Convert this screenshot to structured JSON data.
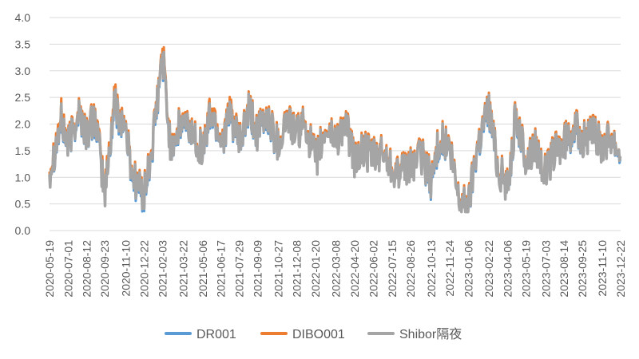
{
  "chart_data": {
    "type": "line",
    "title": "",
    "xlabel": "",
    "ylabel": "",
    "ylim": [
      0,
      4
    ],
    "yticks": [
      "0.0",
      "0.5",
      "1.0",
      "1.5",
      "2.0",
      "2.5",
      "3.0",
      "3.5",
      "4.0"
    ],
    "grid": "horizontal",
    "legend_position": "bottom",
    "x_start": "2020-05-19",
    "x_end": "2023-12-22",
    "xtick_labels": [
      "2020-05-19",
      "2020-07-01",
      "2020-08-12",
      "2020-09-23",
      "2020-11-10",
      "2020-12-22",
      "2021-02-03",
      "2021-03-22",
      "2021-05-06",
      "2021-06-17",
      "2021-07-29",
      "2021-09-09",
      "2021-10-27",
      "2021-12-08",
      "2022-01-20",
      "2022-03-08",
      "2022-04-20",
      "2022-06-02",
      "2022-07-15",
      "2022-08-26",
      "2022-10-13",
      "2022-11-24",
      "2023-01-06",
      "2023-02-22",
      "2023-04-06",
      "2023-05-19",
      "2023-07-03",
      "2023-08-14",
      "2023-09-25",
      "2023-11-10",
      "2023-12-22"
    ],
    "series": [
      {
        "name": "DR001",
        "color": "#5b9bd5",
        "x": [
          "2020-05-19",
          "2020-06-15",
          "2020-07-01",
          "2020-07-25",
          "2020-08-12",
          "2020-09-01",
          "2020-09-23",
          "2020-10-15",
          "2020-11-10",
          "2020-11-25",
          "2020-12-22",
          "2021-01-10",
          "2021-01-25",
          "2021-02-03",
          "2021-02-20",
          "2021-03-22",
          "2021-04-15",
          "2021-05-06",
          "2021-05-25",
          "2021-06-17",
          "2021-07-10",
          "2021-07-29",
          "2021-08-20",
          "2021-09-09",
          "2021-10-01",
          "2021-10-27",
          "2021-11-15",
          "2021-12-08",
          "2021-12-28",
          "2022-01-20",
          "2022-02-15",
          "2022-03-08",
          "2022-03-30",
          "2022-04-20",
          "2022-05-10",
          "2022-06-02",
          "2022-06-25",
          "2022-07-15",
          "2022-08-05",
          "2022-08-26",
          "2022-09-20",
          "2022-10-13",
          "2022-11-01",
          "2022-11-24",
          "2022-12-15",
          "2023-01-06",
          "2023-01-25",
          "2023-02-22",
          "2023-03-15",
          "2023-04-06",
          "2023-04-25",
          "2023-05-19",
          "2023-06-10",
          "2023-07-03",
          "2023-07-25",
          "2023-08-14",
          "2023-09-05",
          "2023-09-25",
          "2023-10-20",
          "2023-11-10",
          "2023-12-01",
          "2023-12-22"
        ],
        "values": [
          1.1,
          2.0,
          1.6,
          2.2,
          1.8,
          2.1,
          0.7,
          2.3,
          1.9,
          1.0,
          0.6,
          1.5,
          2.6,
          3.25,
          1.6,
          2.0,
          1.8,
          1.5,
          2.2,
          1.7,
          2.1,
          1.6,
          2.2,
          1.8,
          2.1,
          1.6,
          2.1,
          1.8,
          2.0,
          1.3,
          1.9,
          1.7,
          2.0,
          1.3,
          1.5,
          1.35,
          1.45,
          1.2,
          1.05,
          1.2,
          1.4,
          0.9,
          1.7,
          1.5,
          0.6,
          0.45,
          1.5,
          2.3,
          1.2,
          0.8,
          2.1,
          1.3,
          1.6,
          1.05,
          1.5,
          1.6,
          1.9,
          1.7,
          1.8,
          1.6,
          1.8,
          1.4
        ]
      },
      {
        "name": "DIBO001",
        "color": "#ed7d31",
        "x": [
          "2020-05-19",
          "2020-06-15",
          "2020-07-01",
          "2020-07-25",
          "2020-08-12",
          "2020-09-01",
          "2020-09-23",
          "2020-10-15",
          "2020-11-10",
          "2020-11-25",
          "2020-12-22",
          "2021-01-10",
          "2021-01-25",
          "2021-02-03",
          "2021-02-20",
          "2021-03-22",
          "2021-04-15",
          "2021-05-06",
          "2021-05-25",
          "2021-06-17",
          "2021-07-10",
          "2021-07-29",
          "2021-08-20",
          "2021-09-09",
          "2021-10-01",
          "2021-10-27",
          "2021-11-15",
          "2021-12-08",
          "2021-12-28",
          "2022-01-20",
          "2022-02-15",
          "2022-03-08",
          "2022-03-30",
          "2022-04-20",
          "2022-05-10",
          "2022-06-02",
          "2022-06-25",
          "2022-07-15",
          "2022-08-05",
          "2022-08-26",
          "2022-09-20",
          "2022-10-13",
          "2022-11-01",
          "2022-11-24",
          "2022-12-15",
          "2023-01-06",
          "2023-01-25",
          "2023-02-22",
          "2023-03-15",
          "2023-04-06",
          "2023-04-25",
          "2023-05-19",
          "2023-06-10",
          "2023-07-03",
          "2023-07-25",
          "2023-08-14",
          "2023-09-05",
          "2023-09-25",
          "2023-10-20",
          "2023-11-10",
          "2023-12-01",
          "2023-12-22"
        ],
        "values": [
          1.15,
          2.15,
          1.65,
          2.3,
          1.85,
          2.2,
          0.75,
          2.5,
          1.95,
          1.1,
          0.7,
          1.6,
          2.7,
          3.4,
          1.65,
          2.1,
          1.85,
          1.55,
          2.35,
          1.75,
          2.25,
          1.65,
          2.3,
          1.85,
          2.2,
          1.65,
          2.15,
          1.85,
          2.05,
          1.35,
          1.95,
          1.75,
          2.05,
          1.35,
          1.55,
          1.4,
          1.5,
          1.25,
          1.1,
          1.25,
          1.45,
          1.0,
          1.8,
          1.55,
          0.65,
          0.5,
          1.6,
          2.4,
          1.25,
          0.85,
          2.2,
          1.35,
          1.65,
          1.1,
          1.55,
          1.65,
          2.0,
          1.75,
          1.85,
          1.65,
          1.85,
          1.45
        ]
      },
      {
        "name": "Shibor隔夜",
        "color": "#a5a5a5",
        "x": [
          "2020-05-19",
          "2020-06-15",
          "2020-07-01",
          "2020-07-25",
          "2020-08-12",
          "2020-09-01",
          "2020-09-23",
          "2020-10-15",
          "2020-11-10",
          "2020-11-25",
          "2020-12-22",
          "2021-01-10",
          "2021-01-25",
          "2021-02-03",
          "2021-02-20",
          "2021-03-22",
          "2021-04-15",
          "2021-05-06",
          "2021-05-25",
          "2021-06-17",
          "2021-07-10",
          "2021-07-29",
          "2021-08-20",
          "2021-09-09",
          "2021-10-01",
          "2021-10-27",
          "2021-11-15",
          "2021-12-08",
          "2021-12-28",
          "2022-01-20",
          "2022-02-15",
          "2022-03-08",
          "2022-03-30",
          "2022-04-20",
          "2022-05-10",
          "2022-06-02",
          "2022-06-25",
          "2022-07-15",
          "2022-08-05",
          "2022-08-26",
          "2022-09-20",
          "2022-10-13",
          "2022-11-01",
          "2022-11-24",
          "2022-12-15",
          "2023-01-06",
          "2023-01-25",
          "2023-02-22",
          "2023-03-15",
          "2023-04-06",
          "2023-04-25",
          "2023-05-19",
          "2023-06-10",
          "2023-07-03",
          "2023-07-25",
          "2023-08-14",
          "2023-09-05",
          "2023-09-25",
          "2023-10-20",
          "2023-11-10",
          "2023-12-01",
          "2023-12-22"
        ],
        "values": [
          1.1,
          2.05,
          1.6,
          2.25,
          1.8,
          2.15,
          0.65,
          2.4,
          1.9,
          1.05,
          0.65,
          1.55,
          2.65,
          3.3,
          1.6,
          2.05,
          1.8,
          1.5,
          2.25,
          1.7,
          2.15,
          1.6,
          2.25,
          1.8,
          2.15,
          1.6,
          2.1,
          1.8,
          2.0,
          1.3,
          1.9,
          1.7,
          2.0,
          1.3,
          1.5,
          1.35,
          1.45,
          1.2,
          1.05,
          1.2,
          1.4,
          0.95,
          1.75,
          1.5,
          0.6,
          0.45,
          1.55,
          2.35,
          1.2,
          0.8,
          2.15,
          1.3,
          1.6,
          1.05,
          1.5,
          1.6,
          1.95,
          1.7,
          1.8,
          1.6,
          1.8,
          1.45
        ]
      }
    ]
  }
}
